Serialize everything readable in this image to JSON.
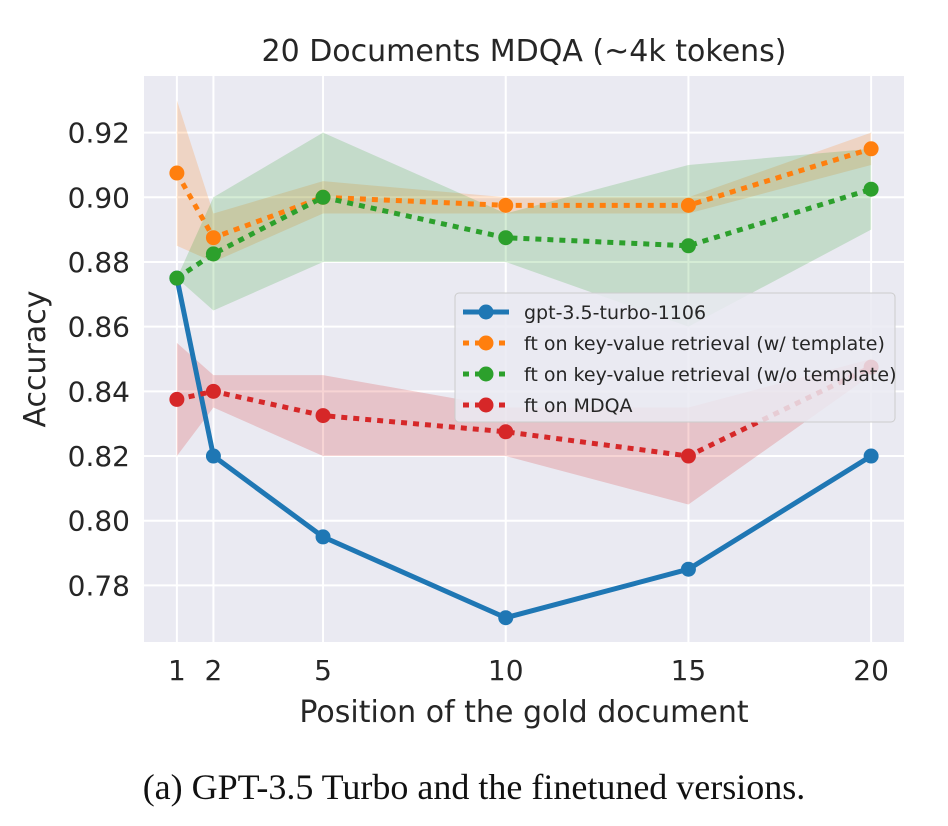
{
  "chart_data": {
    "type": "line",
    "title": "20 Documents MDQA (~4k tokens)",
    "xlabel": "Position of the gold document",
    "ylabel": "Accuracy",
    "x": [
      1,
      2,
      5,
      10,
      15,
      20
    ],
    "xticks": [
      "1",
      "2",
      "5",
      "10",
      "15",
      "20"
    ],
    "xlim": [
      0.1,
      20.9
    ],
    "ylim": [
      0.7625,
      0.9375
    ],
    "yticks": [
      "0.78",
      "0.80",
      "0.82",
      "0.84",
      "0.86",
      "0.88",
      "0.90",
      "0.92"
    ],
    "grid": true,
    "legend_position": "center-right",
    "series": [
      {
        "name": "gpt-3.5-turbo-1106",
        "color": "#1f77b4",
        "style": "solid",
        "values": [
          0.875,
          0.82,
          0.795,
          0.77,
          0.785,
          0.82
        ]
      },
      {
        "name": "ft on key-value retrieval (w/ template)",
        "color": "#ff7f0e",
        "style": "dotted",
        "values": [
          0.9075,
          0.8875,
          0.9,
          0.8975,
          0.8975,
          0.915
        ],
        "band_low": [
          0.885,
          0.88,
          0.895,
          0.895,
          0.895,
          0.91
        ],
        "band_high": [
          0.93,
          0.895,
          0.905,
          0.9,
          0.9,
          0.92
        ]
      },
      {
        "name": "ft on key-value retrieval (w/o template)",
        "color": "#2ca02c",
        "style": "dotted",
        "values": [
          0.875,
          0.8825,
          0.9,
          0.8875,
          0.885,
          0.9025
        ],
        "band_low": [
          0.875,
          0.865,
          0.88,
          0.88,
          0.86,
          0.89
        ],
        "band_high": [
          0.875,
          0.9,
          0.92,
          0.895,
          0.91,
          0.915
        ]
      },
      {
        "name": "ft on MDQA",
        "color": "#d62728",
        "style": "dotted",
        "values": [
          0.8375,
          0.84,
          0.8325,
          0.8275,
          0.82,
          0.8475
        ],
        "band_low": [
          0.82,
          0.835,
          0.82,
          0.82,
          0.805,
          0.845
        ],
        "band_high": [
          0.855,
          0.845,
          0.845,
          0.835,
          0.835,
          0.85
        ]
      }
    ]
  },
  "caption": "(a) GPT-3.5 Turbo and the finetuned versions."
}
